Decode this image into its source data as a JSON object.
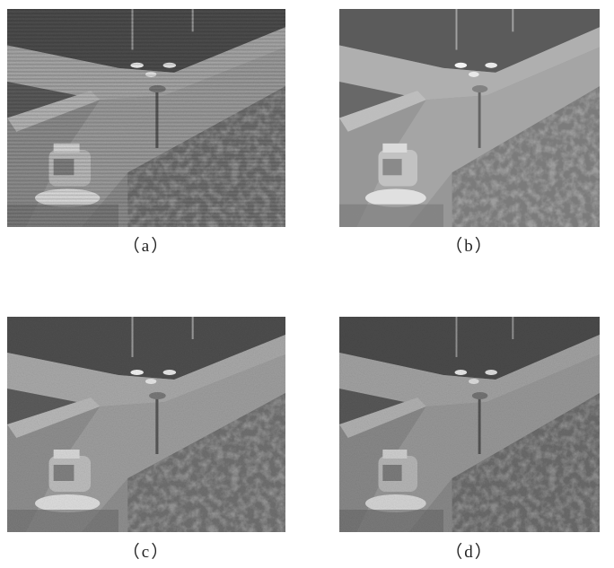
{
  "panels": [
    {
      "caption": "（a）"
    },
    {
      "caption": "（b）"
    },
    {
      "caption": "（c）"
    },
    {
      "caption": "（d）"
    }
  ]
}
